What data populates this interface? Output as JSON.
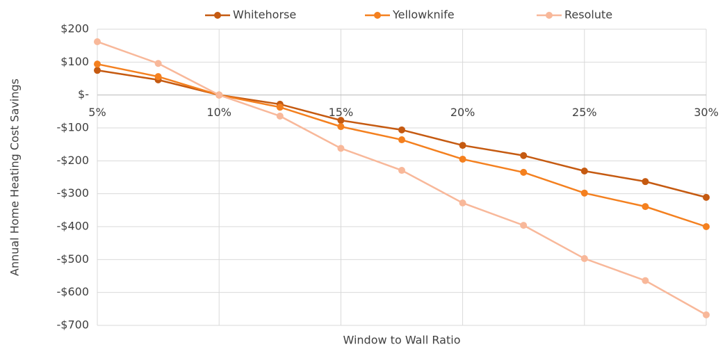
{
  "chart_data": {
    "type": "line",
    "x_label": "Window to Wall Ratio",
    "y_label": "Annual Home Heating Cost Savings",
    "x": [
      5,
      7.5,
      10,
      12.5,
      15,
      17.5,
      20,
      22.5,
      25,
      27.5,
      30
    ],
    "series": [
      {
        "name": "Whitehorse",
        "color": "#c55a11",
        "values": [
          75,
          46,
          0,
          -28,
          -77,
          -106,
          -153,
          -184,
          -231,
          -263,
          -311
        ]
      },
      {
        "name": "Yellowknife",
        "color": "#f4801f",
        "values": [
          94,
          56,
          0,
          -37,
          -96,
          -136,
          -195,
          -235,
          -298,
          -339,
          -400
        ]
      },
      {
        "name": "Resolute",
        "color": "#f8b89a",
        "values": [
          162,
          96,
          0,
          -64,
          -162,
          -229,
          -328,
          -396,
          -497,
          -564,
          -668
        ]
      }
    ],
    "xlim": [
      5,
      30
    ],
    "xticks": [
      {
        "value": 5,
        "label": "5%"
      },
      {
        "value": 10,
        "label": "10%"
      },
      {
        "value": 15,
        "label": "15%"
      },
      {
        "value": 20,
        "label": "20%"
      },
      {
        "value": 25,
        "label": "25%"
      },
      {
        "value": 30,
        "label": "30%"
      }
    ],
    "ylim": [
      -700,
      200
    ],
    "yticks": [
      {
        "value": 200,
        "label": "$200"
      },
      {
        "value": 100,
        "label": "$100"
      },
      {
        "value": 0,
        "label": "$-"
      },
      {
        "value": -100,
        "label": "-$100"
      },
      {
        "value": -200,
        "label": "-$200"
      },
      {
        "value": -300,
        "label": "-$300"
      },
      {
        "value": -400,
        "label": "-$400"
      },
      {
        "value": -500,
        "label": "-$500"
      },
      {
        "value": -600,
        "label": "-$600"
      },
      {
        "value": -700,
        "label": "-$700"
      }
    ],
    "grid": true,
    "legend": "top"
  }
}
